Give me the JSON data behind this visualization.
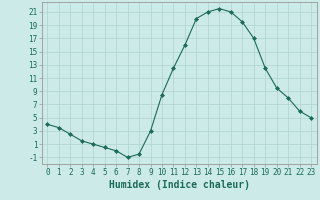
{
  "x": [
    0,
    1,
    2,
    3,
    4,
    5,
    6,
    7,
    8,
    9,
    10,
    11,
    12,
    13,
    14,
    15,
    16,
    17,
    18,
    19,
    20,
    21,
    22,
    23
  ],
  "y": [
    4,
    3.5,
    2.5,
    1.5,
    1,
    0.5,
    0,
    -1,
    -0.5,
    3,
    8.5,
    12.5,
    16,
    20,
    21,
    21.5,
    21,
    19.5,
    17,
    12.5,
    9.5,
    8,
    6,
    5
  ],
  "line_color": "#1a6b5a",
  "marker": "D",
  "marker_size": 2.0,
  "bg_color": "#cceae7",
  "grid_color": "#b0d4d0",
  "axis_color": "#999999",
  "xlabel": "Humidex (Indice chaleur)",
  "xlim": [
    -0.5,
    23.5
  ],
  "ylim": [
    -2,
    22.5
  ],
  "yticks": [
    -1,
    1,
    3,
    5,
    7,
    9,
    11,
    13,
    15,
    17,
    19,
    21
  ],
  "xticks": [
    0,
    1,
    2,
    3,
    4,
    5,
    6,
    7,
    8,
    9,
    10,
    11,
    12,
    13,
    14,
    15,
    16,
    17,
    18,
    19,
    20,
    21,
    22,
    23
  ],
  "tick_fontsize": 5.5,
  "xlabel_fontsize": 7.0
}
